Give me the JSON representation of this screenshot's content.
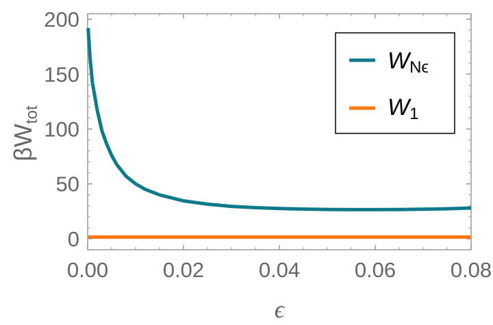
{
  "chart_data": {
    "type": "line",
    "xlabel": "ϵ",
    "ylabel": {
      "base": "βW",
      "sub": "tot"
    },
    "xlim": [
      0.0,
      0.08
    ],
    "ylim": [
      -10,
      205
    ],
    "x_ticks": [
      0.0,
      0.02,
      0.04,
      0.06,
      0.08
    ],
    "x_tick_labels": [
      "0.00",
      "0.02",
      "0.04",
      "0.06",
      "0.08"
    ],
    "y_ticks": [
      0,
      50,
      100,
      150,
      200
    ],
    "y_tick_labels": [
      "0",
      "50",
      "100",
      "150",
      "200"
    ],
    "grid": false,
    "legend_placement": "top-right",
    "series": [
      {
        "name": {
          "base": "W",
          "sub": "Nϵ"
        },
        "color": "#0f7a8c",
        "x": [
          0.0001,
          0.0005,
          0.001,
          0.002,
          0.003,
          0.004,
          0.005,
          0.006,
          0.008,
          0.01,
          0.012,
          0.015,
          0.02,
          0.025,
          0.03,
          0.035,
          0.04,
          0.045,
          0.05,
          0.055,
          0.06,
          0.065,
          0.07,
          0.075,
          0.08
        ],
        "values": [
          192,
          165,
          142,
          117,
          98,
          86,
          76,
          68,
          57,
          50,
          45,
          40,
          34.5,
          31.5,
          29.5,
          28.3,
          27.5,
          27.0,
          26.7,
          26.5,
          26.5,
          26.6,
          26.9,
          27.3,
          28.0
        ]
      },
      {
        "name": {
          "base": "W",
          "sub": "1"
        },
        "color": "#f97a12",
        "x": [
          0.0001,
          0.08
        ],
        "values": [
          1.5,
          1.5
        ]
      }
    ]
  }
}
